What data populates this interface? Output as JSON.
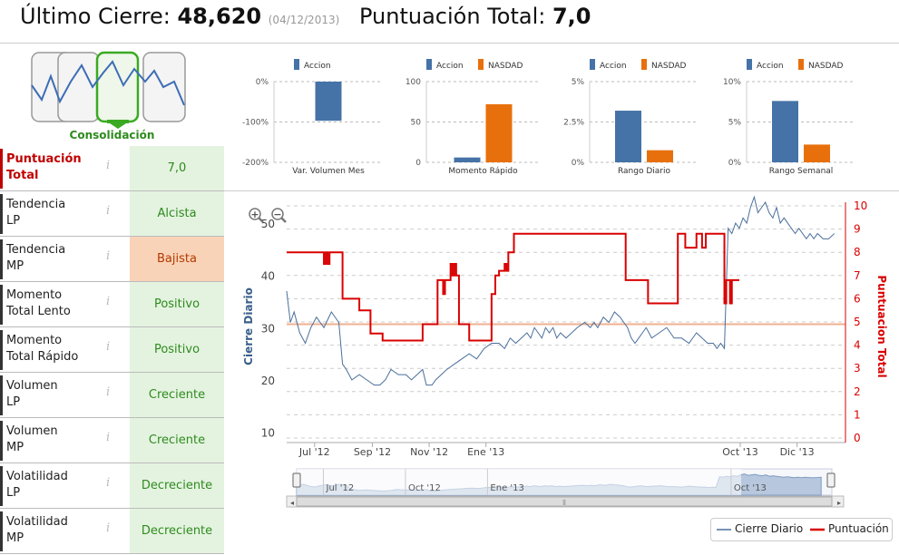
{
  "header": {
    "last_close_label": "Último Cierre:",
    "last_close_value": "48,620",
    "last_close_date": "(04/12/2013)",
    "total_score_label": "Puntuación Total:",
    "total_score_value": "7,0"
  },
  "pattern": {
    "caption": "Consolidación"
  },
  "indicators": [
    {
      "label_line1": "Puntuación",
      "label_line2": "Total",
      "info": "i",
      "value": "7,0",
      "status": "neutral"
    },
    {
      "label_line1": "Tendencia",
      "label_line2": "LP",
      "info": "i",
      "value": "Alcista",
      "status": "positive"
    },
    {
      "label_line1": "Tendencia",
      "label_line2": "MP",
      "info": "i",
      "value": "Bajista",
      "status": "negative"
    },
    {
      "label_line1": "Momento",
      "label_line2": "Total Lento",
      "info": "i",
      "value": "Positivo",
      "status": "positive"
    },
    {
      "label_line1": "Momento",
      "label_line2": "Total Rápido",
      "info": "i",
      "value": "Positivo",
      "status": "positive"
    },
    {
      "label_line1": "Volumen",
      "label_line2": "LP",
      "info": "i",
      "value": "Creciente",
      "status": "positive"
    },
    {
      "label_line1": "Volumen",
      "label_line2": "MP",
      "info": "i",
      "value": "Creciente",
      "status": "positive"
    },
    {
      "label_line1": "Volatilidad",
      "label_line2": "LP",
      "info": "i",
      "value": "Decreciente",
      "status": "positive"
    },
    {
      "label_line1": "Volatilidad",
      "label_line2": "MP",
      "info": "i",
      "value": "Decreciente",
      "status": "positive"
    }
  ],
  "colors": {
    "accion": "#4572a7",
    "nasdaq": "#e8700c",
    "score_line": "#d90000",
    "close_line": "#4a6f9a",
    "positive_bg": "#e4f3e0",
    "positive_text": "#2e8b1e",
    "negative_bg": "#f9d3b8",
    "negative_text": "#b23a00",
    "title_red": "#c00000",
    "median_line": "#f0b090"
  },
  "chart_data": [
    {
      "type": "bar",
      "categories": [
        "Var. Volumen Mes"
      ],
      "legend": [
        "Accion"
      ],
      "series": [
        {
          "name": "Accion",
          "values": [
            -97
          ]
        }
      ],
      "yticks": [
        "0%",
        "-100%",
        "-200%"
      ],
      "ylim": [
        -200,
        0
      ]
    },
    {
      "type": "bar",
      "categories": [
        "Momento Rápido"
      ],
      "legend": [
        "Accion",
        "NASDAD"
      ],
      "series": [
        {
          "name": "Accion",
          "values": [
            6
          ]
        },
        {
          "name": "NASDAD",
          "values": [
            72
          ]
        }
      ],
      "yticks": [
        "100",
        "50",
        "0"
      ],
      "ylim": [
        0,
        100
      ]
    },
    {
      "type": "bar",
      "categories": [
        "Rango Diario"
      ],
      "legend": [
        "Accion",
        "NASDAD"
      ],
      "series": [
        {
          "name": "Accion",
          "values": [
            3.2
          ]
        },
        {
          "name": "NASDAD",
          "values": [
            0.75
          ]
        }
      ],
      "yticks": [
        "5%",
        "2.5%",
        "0%"
      ],
      "ylim": [
        0,
        5
      ]
    },
    {
      "type": "bar",
      "categories": [
        "Rango Semanal"
      ],
      "legend": [
        "Accion",
        "NASDAD"
      ],
      "series": [
        {
          "name": "Accion",
          "values": [
            7.6
          ]
        },
        {
          "name": "NASDAD",
          "values": [
            2.2
          ]
        }
      ],
      "yticks": [
        "10%",
        "5%",
        "0%"
      ],
      "ylim": [
        0,
        10
      ]
    },
    {
      "type": "line",
      "x_labels": [
        "Jul '12",
        "Sep '12",
        "Nov '12",
        "Ene '13",
        "Oct '13",
        "Dic '13"
      ],
      "x_label_days": [
        30,
        92,
        153,
        214,
        487,
        548
      ],
      "x_range_days": [
        0,
        600
      ],
      "ylabel_left": "Cierre Diario",
      "ylabel_right": "Puntuacion Total",
      "y_left_ticks": [
        "50",
        "40",
        "30",
        "20",
        "10"
      ],
      "y_left_range": [
        8,
        54
      ],
      "y_right_ticks": [
        "10",
        "9",
        "8",
        "7",
        "6",
        "5",
        "4",
        "3",
        "2",
        "1",
        "0"
      ],
      "y_right_range": [
        0,
        10
      ],
      "median_score": 4.9,
      "series": [
        {
          "name": "Cierre Diario",
          "x": [
            0,
            4,
            8,
            14,
            20,
            26,
            32,
            40,
            48,
            56,
            60,
            64,
            70,
            78,
            86,
            94,
            100,
            106,
            112,
            120,
            128,
            134,
            140,
            146,
            150,
            156,
            160,
            166,
            172,
            180,
            188,
            196,
            204,
            212,
            220,
            228,
            234,
            240,
            246,
            252,
            258,
            262,
            266,
            270,
            274,
            278,
            282,
            286,
            290,
            294,
            300,
            306,
            312,
            320,
            326,
            330,
            334,
            340,
            346,
            352,
            358,
            362,
            366,
            370,
            374,
            378,
            382,
            386,
            392,
            400,
            408,
            416,
            424,
            432,
            440,
            446,
            452,
            458,
            462,
            466,
            470,
            474,
            478,
            482,
            486,
            490,
            494,
            498,
            502,
            506,
            510,
            514,
            518,
            522,
            526,
            530,
            534,
            538,
            542,
            546,
            550,
            554,
            558,
            562,
            566,
            570,
            576,
            582,
            588
          ],
          "y": [
            37,
            31,
            33,
            29,
            27,
            30,
            32,
            30,
            33,
            31,
            23,
            22,
            20,
            21,
            20,
            19,
            19,
            20,
            22,
            21,
            21,
            20,
            21,
            22,
            19,
            19,
            20,
            21,
            22,
            23,
            24,
            25,
            24,
            26,
            27,
            27,
            26,
            28,
            27,
            28,
            29,
            28,
            30,
            29,
            28,
            30,
            29,
            30,
            28,
            29,
            28,
            29,
            30,
            31,
            30,
            31,
            30,
            32,
            31,
            33,
            32,
            31,
            30,
            28,
            27,
            28,
            29,
            30,
            28,
            29,
            30,
            28,
            28,
            27,
            29,
            28,
            27,
            27,
            26,
            27,
            26,
            49,
            48,
            50,
            49,
            51,
            50,
            53,
            55,
            52,
            53,
            54,
            52,
            51,
            53,
            50,
            51,
            50,
            49,
            48,
            49,
            48,
            47,
            48,
            47,
            48,
            47,
            47,
            48
          ]
        },
        {
          "name": "Puntuación",
          "x": [
            0,
            40,
            40,
            42,
            42,
            44,
            44,
            46,
            46,
            60,
            60,
            78,
            78,
            90,
            90,
            103,
            103,
            146,
            146,
            162,
            162,
            168,
            168,
            170,
            170,
            176,
            176,
            178,
            178,
            180,
            180,
            182,
            182,
            185,
            185,
            196,
            196,
            220,
            220,
            224,
            224,
            228,
            228,
            234,
            234,
            236,
            236,
            238,
            238,
            244,
            244,
            364,
            364,
            388,
            388,
            420,
            420,
            428,
            428,
            440,
            440,
            446,
            446,
            450,
            450,
            470,
            470,
            472,
            472,
            476,
            476,
            478,
            478,
            486
          ],
          "y": [
            8,
            8,
            7.5,
            7.5,
            8,
            8,
            7.5,
            7.5,
            8,
            8,
            6,
            6,
            5.5,
            5.5,
            4.5,
            4.5,
            4.2,
            4.2,
            4.9,
            4.9,
            6.8,
            6.8,
            6.2,
            6.2,
            6.8,
            6.8,
            7.5,
            7.5,
            7,
            7,
            7.5,
            7.5,
            7,
            7,
            4.9,
            4.9,
            4.2,
            4.2,
            6.2,
            6.2,
            7,
            7,
            7.2,
            7.2,
            7.5,
            7.5,
            7.2,
            7.2,
            8,
            8,
            8.8,
            8.8,
            6.8,
            6.8,
            5.8,
            5.8,
            8.8,
            8.8,
            8.2,
            8.2,
            8.8,
            8.8,
            8.2,
            8.2,
            8.8,
            8.8,
            5.8,
            5.8,
            6.8,
            6.8,
            5.8,
            5.8,
            6.8,
            6.8
          ]
        }
      ]
    }
  ],
  "navigator": {
    "labels": [
      "Jul '12",
      "Oct '12",
      "Ene '13",
      "Oct '13"
    ]
  },
  "legend": {
    "close_label": "Cierre Diario",
    "score_label": "Puntuación"
  },
  "zoom": {
    "in_icon": "zoom-in-icon",
    "out_icon": "zoom-out-icon"
  }
}
